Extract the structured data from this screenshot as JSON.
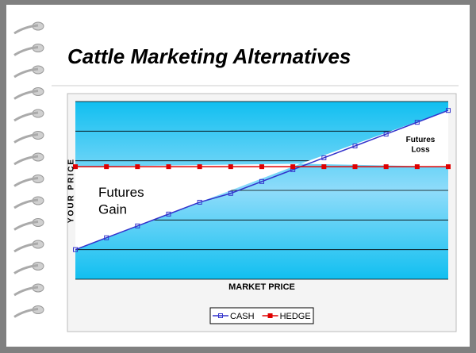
{
  "chart_data": {
    "type": "line",
    "title": "Cattle Marketing Alternatives",
    "x_label": "MARKET PRICE",
    "y_label": "YOUR PRICE",
    "categories": [
      null,
      null,
      null,
      null,
      null,
      null,
      null,
      null,
      null,
      null,
      null,
      null,
      null
    ],
    "series": [
      {
        "name": "CASH",
        "color": "#3333cc",
        "marker": "square-open",
        "values": [
          1.0,
          1.4,
          1.8,
          2.2,
          2.6,
          2.9,
          3.3,
          3.7,
          4.1,
          4.5,
          4.9,
          5.3,
          5.7
        ]
      },
      {
        "name": "HEDGE",
        "color": "#e00000",
        "marker": "square-filled",
        "values": [
          3.8,
          3.8,
          3.8,
          3.8,
          3.8,
          3.8,
          3.8,
          3.8,
          3.8,
          3.8,
          3.8,
          3.8,
          3.8
        ]
      }
    ],
    "ylim": [
      0,
      6
    ],
    "annotations": [
      {
        "text": "Futures Gain"
      },
      {
        "text": "Futures Loss"
      }
    ],
    "legend": "bottom"
  }
}
